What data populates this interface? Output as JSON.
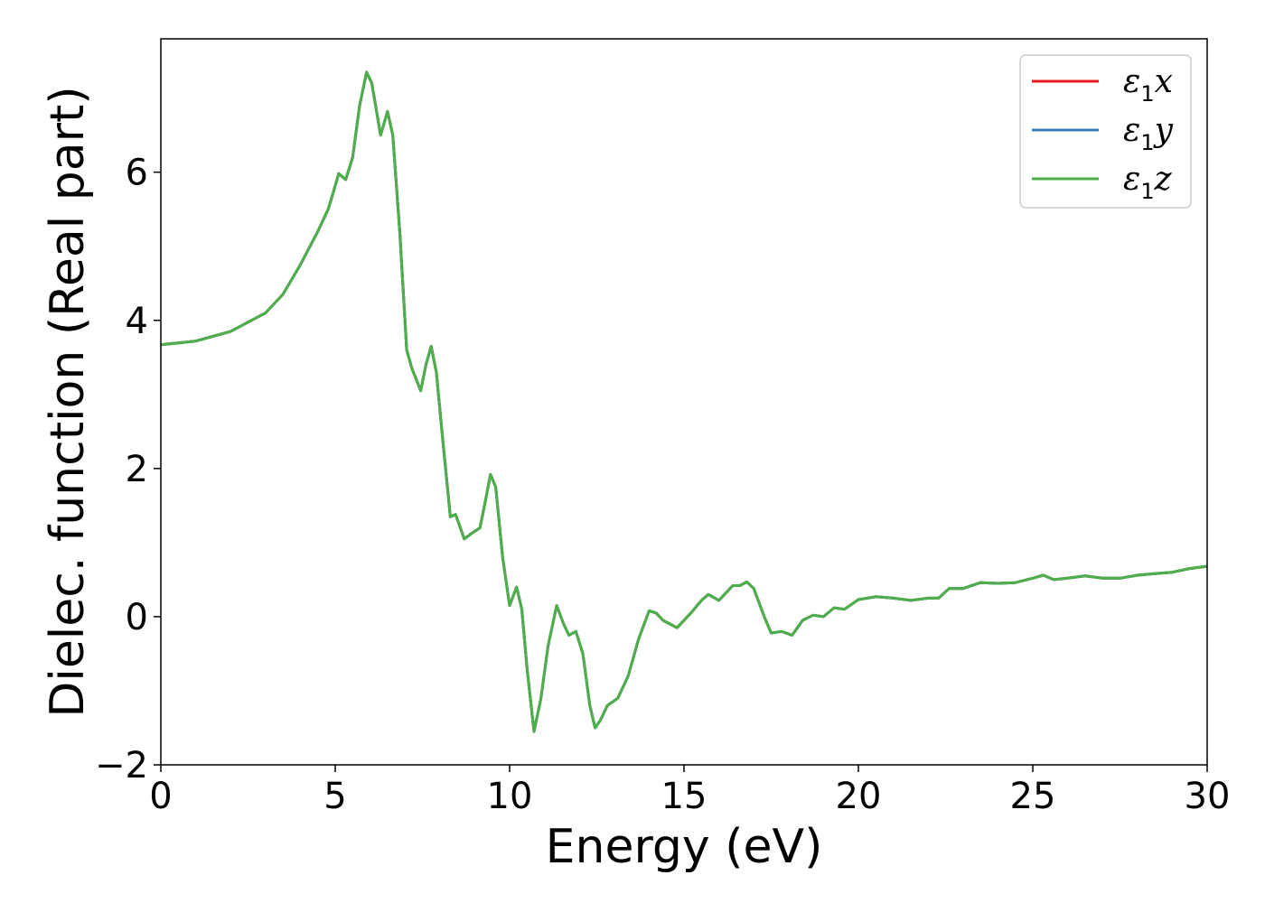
{
  "chart_data": {
    "type": "line",
    "title": "",
    "xlabel": "Energy (eV)",
    "ylabel": "Dielec. function (Real part)",
    "xlim": [
      0,
      30
    ],
    "ylim": [
      -2,
      7.8
    ],
    "x_ticks": [
      0,
      5,
      10,
      15,
      20,
      25,
      30
    ],
    "x_tick_labels": [
      "0",
      "5",
      "10",
      "15",
      "20",
      "25",
      "30"
    ],
    "y_ticks": [
      -2,
      0,
      2,
      4,
      6
    ],
    "y_tick_labels": [
      "−2",
      "0",
      "2",
      "4",
      "6"
    ],
    "grid": false,
    "legend_position": "top-right",
    "series": [
      {
        "name": "ε1x",
        "legend": {
          "symbol": "ε",
          "sub": "1",
          "var": "x"
        },
        "color": "#e41a1c",
        "points": [
          [
            0,
            3.67
          ],
          [
            1,
            3.72
          ],
          [
            2,
            3.85
          ],
          [
            3,
            4.1
          ],
          [
            3.5,
            4.35
          ],
          [
            4,
            4.75
          ],
          [
            4.5,
            5.2
          ],
          [
            4.8,
            5.5
          ],
          [
            5.1,
            5.98
          ],
          [
            5.3,
            5.9
          ],
          [
            5.5,
            6.2
          ],
          [
            5.7,
            6.9
          ],
          [
            5.9,
            7.35
          ],
          [
            6.05,
            7.2
          ],
          [
            6.3,
            6.5
          ],
          [
            6.5,
            6.82
          ],
          [
            6.65,
            6.5
          ],
          [
            6.85,
            5.2
          ],
          [
            7.05,
            3.6
          ],
          [
            7.2,
            3.35
          ],
          [
            7.45,
            3.05
          ],
          [
            7.6,
            3.4
          ],
          [
            7.75,
            3.65
          ],
          [
            7.9,
            3.3
          ],
          [
            8.1,
            2.3
          ],
          [
            8.3,
            1.35
          ],
          [
            8.45,
            1.38
          ],
          [
            8.7,
            1.05
          ],
          [
            8.9,
            1.12
          ],
          [
            9.15,
            1.2
          ],
          [
            9.3,
            1.55
          ],
          [
            9.45,
            1.92
          ],
          [
            9.6,
            1.75
          ],
          [
            9.8,
            0.8
          ],
          [
            10.0,
            0.15
          ],
          [
            10.2,
            0.4
          ],
          [
            10.35,
            0.1
          ],
          [
            10.5,
            -0.7
          ],
          [
            10.7,
            -1.55
          ],
          [
            10.9,
            -1.1
          ],
          [
            11.1,
            -0.4
          ],
          [
            11.35,
            0.15
          ],
          [
            11.55,
            -0.1
          ],
          [
            11.7,
            -0.25
          ],
          [
            11.9,
            -0.2
          ],
          [
            12.1,
            -0.5
          ],
          [
            12.3,
            -1.2
          ],
          [
            12.45,
            -1.5
          ],
          [
            12.6,
            -1.4
          ],
          [
            12.8,
            -1.2
          ],
          [
            13.1,
            -1.1
          ],
          [
            13.4,
            -0.8
          ],
          [
            13.7,
            -0.3
          ],
          [
            14.0,
            0.08
          ],
          [
            14.2,
            0.05
          ],
          [
            14.4,
            -0.05
          ],
          [
            14.8,
            -0.15
          ],
          [
            15.2,
            0.05
          ],
          [
            15.5,
            0.22
          ],
          [
            15.7,
            0.3
          ],
          [
            16.0,
            0.22
          ],
          [
            16.2,
            0.32
          ],
          [
            16.4,
            0.42
          ],
          [
            16.6,
            0.42
          ],
          [
            16.8,
            0.47
          ],
          [
            17.0,
            0.38
          ],
          [
            17.3,
            0.0
          ],
          [
            17.5,
            -0.22
          ],
          [
            17.8,
            -0.2
          ],
          [
            18.1,
            -0.25
          ],
          [
            18.4,
            -0.05
          ],
          [
            18.7,
            0.02
          ],
          [
            19.0,
            0.0
          ],
          [
            19.3,
            0.12
          ],
          [
            19.6,
            0.1
          ],
          [
            20.0,
            0.23
          ],
          [
            20.5,
            0.27
          ],
          [
            21.0,
            0.25
          ],
          [
            21.5,
            0.22
          ],
          [
            22.0,
            0.25
          ],
          [
            22.3,
            0.25
          ],
          [
            22.6,
            0.38
          ],
          [
            23.0,
            0.38
          ],
          [
            23.5,
            0.46
          ],
          [
            24.0,
            0.45
          ],
          [
            24.5,
            0.46
          ],
          [
            25.0,
            0.52
          ],
          [
            25.3,
            0.56
          ],
          [
            25.6,
            0.5
          ],
          [
            26.0,
            0.52
          ],
          [
            26.5,
            0.55
          ],
          [
            27.0,
            0.52
          ],
          [
            27.5,
            0.52
          ],
          [
            28.0,
            0.56
          ],
          [
            28.5,
            0.58
          ],
          [
            29.0,
            0.6
          ],
          [
            29.5,
            0.65
          ],
          [
            30.0,
            0.68
          ]
        ]
      },
      {
        "name": "ε1y",
        "legend": {
          "symbol": "ε",
          "sub": "1",
          "var": "y"
        },
        "color": "#377eb8",
        "points_same_as": "ε1x"
      },
      {
        "name": "ε1z",
        "legend": {
          "symbol": "ε",
          "sub": "1",
          "var": "z"
        },
        "color": "#4daf4a",
        "points_same_as": "ε1x"
      }
    ]
  }
}
